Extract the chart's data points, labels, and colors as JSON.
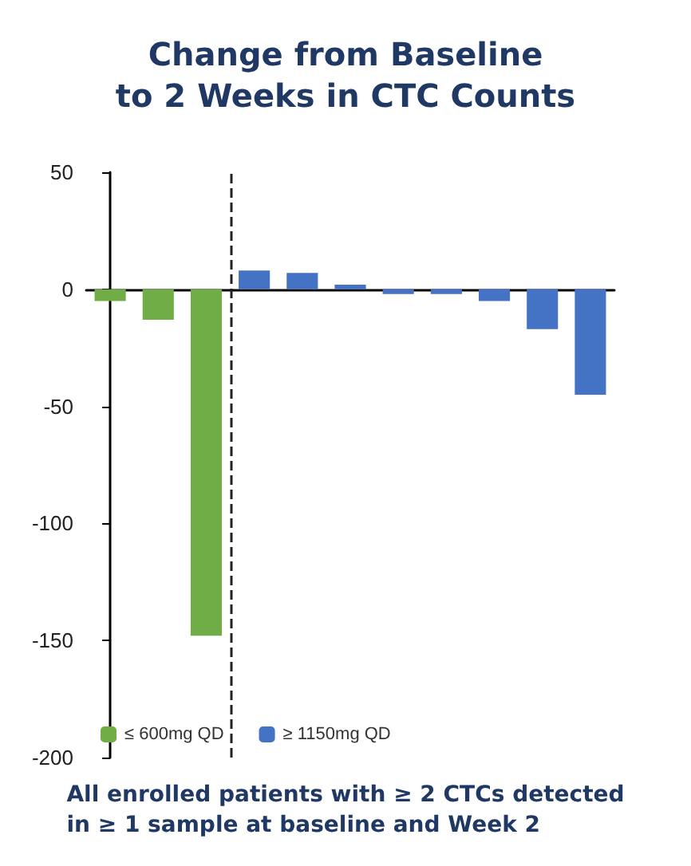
{
  "chart_data": {
    "type": "bar",
    "title": "Change from Baseline\nto 2 Weeks in CTC Counts",
    "categories": [
      null,
      null,
      null,
      null,
      null,
      null,
      null,
      null,
      null,
      null,
      null
    ],
    "series": [
      {
        "name": "≤ 600mg QD",
        "color": "#70ad47",
        "values": [
          -5,
          -13,
          -148,
          null,
          null,
          null,
          null,
          null,
          null,
          null,
          null
        ]
      },
      {
        "name": "≥ 1150mg QD",
        "color": "#4472c4",
        "values": [
          null,
          null,
          null,
          8,
          7,
          2,
          -2,
          -2,
          -5,
          -17,
          -45
        ]
      }
    ],
    "ylim": [
      -200,
      50
    ],
    "yticks": [
      -200,
      -150,
      -100,
      -50,
      0,
      50
    ],
    "grid": false,
    "legend": "bottom left",
    "annotations": [
      "All enrolled patients with ≥ 2 CTCs detected\nin ≥ 1 sample at baseline and Week 2"
    ]
  }
}
